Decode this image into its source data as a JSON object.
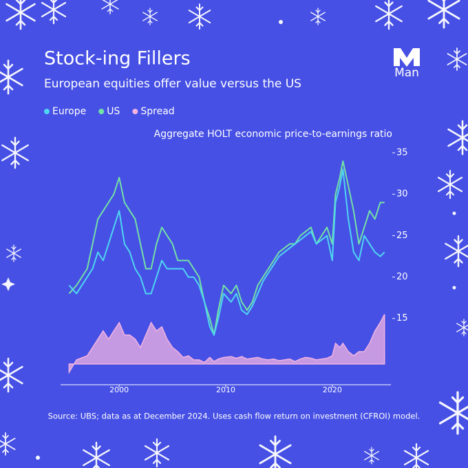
{
  "chart_data": {
    "type": "line",
    "title": "Stock-ing Fillers",
    "subtitle": "European equities offer value versus the US",
    "logo": "Man",
    "axis_label": "Aggregate HOLT economic price-to-earnings ratio",
    "source": "Source: UBS; data as at December 2024. Uses cash flow return on investment (CFROI) model.",
    "x": [
      1995.3,
      1996,
      1997,
      1997.5,
      1998,
      1998.5,
      1999,
      1999.5,
      2000,
      2000.5,
      2001,
      2001.5,
      2002,
      2002.5,
      2003,
      2003.5,
      2004,
      2004.5,
      2005,
      2005.5,
      2006,
      2006.5,
      2007,
      2007.5,
      2008,
      2008.5,
      2008.9,
      2009.3,
      2009.8,
      2010.5,
      2011,
      2011.5,
      2012,
      2012.5,
      2013,
      2013.5,
      2014,
      2014.5,
      2015,
      2015.5,
      2016,
      2016.5,
      2017,
      2017.5,
      2018,
      2018.5,
      2019,
      2019.5,
      2020,
      2020.3,
      2020.7,
      2021,
      2021.5,
      2022,
      2022.5,
      2023,
      2023.5,
      2024,
      2024.5,
      2024.9
    ],
    "series": [
      {
        "name": "Europe",
        "color": "#4fd6f2",
        "values": [
          19,
          18,
          20,
          21,
          23,
          22,
          24,
          26,
          28,
          24,
          23,
          21,
          20,
          18,
          18,
          20,
          22,
          21,
          21,
          21,
          21,
          20,
          20,
          19,
          17,
          14,
          13,
          15,
          18,
          17,
          18,
          16,
          15.5,
          16.5,
          18,
          19.5,
          20.5,
          21.5,
          22.5,
          23,
          23.5,
          24,
          24.5,
          25,
          25.5,
          24,
          24.5,
          25,
          22,
          29,
          31,
          33,
          27,
          23,
          22,
          25,
          24,
          23,
          22.5,
          23
        ]
      },
      {
        "name": "US",
        "color": "#74e2a6",
        "values": [
          18,
          19,
          21,
          24,
          27,
          28,
          29,
          30,
          32,
          29,
          28,
          27,
          24,
          21,
          21,
          24,
          26,
          25,
          24,
          22,
          22,
          22,
          21,
          20,
          17,
          15,
          13,
          16,
          19,
          18,
          19,
          17,
          16,
          17,
          19,
          20,
          21,
          22,
          23,
          23.5,
          24,
          24,
          25,
          25.5,
          26,
          24,
          25,
          26,
          24,
          30,
          32,
          34,
          31,
          28,
          24,
          26,
          28,
          27,
          29,
          29
        ]
      },
      {
        "name": "Spread",
        "color": "#f2b3e2",
        "axis": "y2",
        "values": [
          -1,
          0.5,
          1,
          2,
          3,
          4,
          3,
          4,
          5,
          3.5,
          3.5,
          3,
          2,
          3.5,
          5,
          4,
          4.5,
          3,
          2,
          1.5,
          0.8,
          1,
          0.5,
          0.5,
          0.2,
          0.8,
          0.3,
          0.6,
          0.8,
          0.9,
          0.7,
          0.9,
          0.6,
          0.7,
          0.8,
          0.6,
          0.5,
          0.6,
          0.4,
          0.5,
          0.6,
          0.3,
          0.6,
          0.8,
          0.7,
          0.5,
          0.6,
          0.7,
          1,
          2.5,
          2,
          2.5,
          1.5,
          1,
          1.5,
          1.5,
          2.5,
          4,
          5,
          6
        ]
      }
    ],
    "xlim": [
      1994.5,
      2025.5
    ],
    "xticks": [
      2000,
      2010,
      2020
    ],
    "ylim": [
      7,
      36
    ],
    "yticks": [
      15,
      20,
      25,
      30,
      35
    ],
    "y2lim": [
      -2.5,
      26.5
    ]
  }
}
